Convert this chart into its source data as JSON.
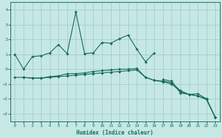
{
  "xlabel": "Humidex (Indice chaleur)",
  "xlim": [
    -0.5,
    23.5
  ],
  "ylim": [
    -3.5,
    4.5
  ],
  "yticks": [
    -3,
    -2,
    -1,
    0,
    1,
    2,
    3,
    4
  ],
  "xticks": [
    0,
    1,
    2,
    3,
    4,
    5,
    6,
    7,
    8,
    9,
    10,
    11,
    12,
    13,
    14,
    15,
    16,
    17,
    18,
    19,
    20,
    21,
    22,
    23
  ],
  "background_color": "#c5e8e4",
  "grid_color": "#aacfcb",
  "line_color": "#1a6b5e",
  "line1_y": [
    1.0,
    0.0,
    0.85,
    0.9,
    1.1,
    1.65,
    1.05,
    3.85,
    1.05,
    1.1,
    1.8,
    1.75,
    2.05,
    2.3,
    1.35,
    0.5,
    1.1,
    null,
    null,
    null,
    null,
    null,
    null,
    null
  ],
  "line2_y": [
    null,
    null,
    null,
    null,
    null,
    null,
    null,
    null,
    null,
    null,
    null,
    null,
    null,
    null,
    null,
    null,
    null,
    -0.7,
    -0.8,
    -1.6,
    -1.7,
    -1.65,
    -2.0,
    -3.25
  ],
  "line3_y": [
    -0.55,
    -0.55,
    -0.6,
    -0.6,
    -0.5,
    -0.45,
    -0.3,
    -0.3,
    -0.25,
    -0.15,
    -0.1,
    -0.05,
    0.0,
    0.0,
    0.05,
    -0.55,
    -0.75,
    -0.8,
    -0.9,
    -1.45,
    -1.7,
    -1.8,
    -2.0,
    -3.25
  ],
  "line4_y": [
    null,
    -0.55,
    -0.6,
    -0.6,
    -0.55,
    -0.5,
    -0.45,
    -0.4,
    -0.35,
    -0.3,
    -0.25,
    -0.2,
    -0.15,
    -0.1,
    -0.05,
    -0.55,
    -0.75,
    -0.85,
    -1.0,
    -1.5,
    -1.7,
    -1.8,
    -2.05,
    -3.25
  ]
}
